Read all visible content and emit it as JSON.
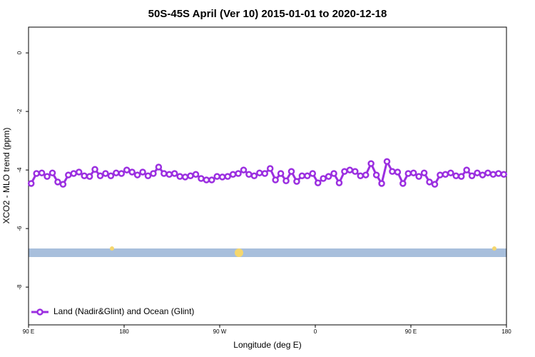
{
  "chart_data": {
    "type": "line",
    "title": "50S-45S April (Ver 10)   2015-01-01 to 2020-12-18",
    "x_label": "Longitude (deg E)",
    "y_label": "XCO2 - MLO trend (ppm)",
    "xlim": [
      90,
      540
    ],
    "xticks": [
      {
        "value": 90,
        "label": "90 E"
      },
      {
        "value": 180,
        "label": "180"
      },
      {
        "value": 270,
        "label": "90 W"
      },
      {
        "value": 360,
        "label": "0"
      },
      {
        "value": 450,
        "label": "90 E"
      },
      {
        "value": 540,
        "label": "180"
      }
    ],
    "ylim": [
      -9.29,
      0.88
    ],
    "yticks": [
      0,
      -2,
      -4,
      -6,
      -8
    ],
    "legend": "bottom-left",
    "x": [
      92.5,
      97.5,
      102.5,
      107.5,
      112.5,
      117.5,
      122.5,
      127.5,
      132.5,
      137.5,
      142.5,
      147.5,
      152.5,
      157.5,
      162.5,
      167.5,
      172.5,
      177.5,
      182.5,
      187.5,
      192.5,
      197.5,
      202.5,
      207.5,
      212.5,
      217.5,
      222.5,
      227.5,
      232.5,
      237.5,
      242.5,
      247.5,
      252.5,
      257.5,
      262.5,
      267.5,
      272.5,
      277.5,
      282.5,
      287.5,
      292.5,
      297.5,
      302.5,
      307.5,
      312.5,
      317.5,
      322.5,
      327.5,
      332.5,
      337.5,
      342.5,
      347.5,
      352.5,
      357.5,
      362.5,
      367.5,
      372.5,
      377.5,
      382.5,
      387.5,
      392.5,
      397.5,
      402.5,
      407.5,
      412.5,
      417.5,
      422.5,
      427.5,
      432.5,
      437.5,
      442.5,
      447.5,
      452.5,
      457.5,
      462.5,
      467.5,
      472.5,
      477.5,
      482.5,
      487.5,
      492.5,
      497.5,
      502.5,
      507.5,
      512.5,
      517.5,
      522.5,
      527.5,
      532.5,
      537.5
    ],
    "series": [
      {
        "name": "Land (Nadir&Glint) and Ocean (Glint)",
        "color": "#9b2fe0",
        "values": [
          -4.46,
          -4.12,
          -4.1,
          -4.22,
          -4.1,
          -4.41,
          -4.49,
          -4.17,
          -4.12,
          -4.07,
          -4.2,
          -4.22,
          -3.98,
          -4.2,
          -4.12,
          -4.2,
          -4.1,
          -4.12,
          -4.0,
          -4.07,
          -4.17,
          -4.07,
          -4.2,
          -4.12,
          -3.9,
          -4.12,
          -4.15,
          -4.12,
          -4.22,
          -4.24,
          -4.2,
          -4.15,
          -4.29,
          -4.34,
          -4.34,
          -4.22,
          -4.24,
          -4.22,
          -4.15,
          -4.12,
          -4.0,
          -4.15,
          -4.2,
          -4.1,
          -4.12,
          -3.95,
          -4.34,
          -4.12,
          -4.37,
          -4.05,
          -4.39,
          -4.2,
          -4.2,
          -4.12,
          -4.44,
          -4.29,
          -4.22,
          -4.12,
          -4.44,
          -4.05,
          -4.0,
          -4.05,
          -4.2,
          -4.17,
          -3.78,
          -4.17,
          -4.46,
          -3.71,
          -4.05,
          -4.07,
          -4.46,
          -4.12,
          -4.1,
          -4.22,
          -4.1,
          -4.41,
          -4.49,
          -4.17,
          -4.15,
          -4.1,
          -4.2,
          -4.22,
          -4.0,
          -4.2,
          -4.1,
          -4.17,
          -4.1,
          -4.15,
          -4.12,
          -4.15
        ]
      }
    ]
  }
}
